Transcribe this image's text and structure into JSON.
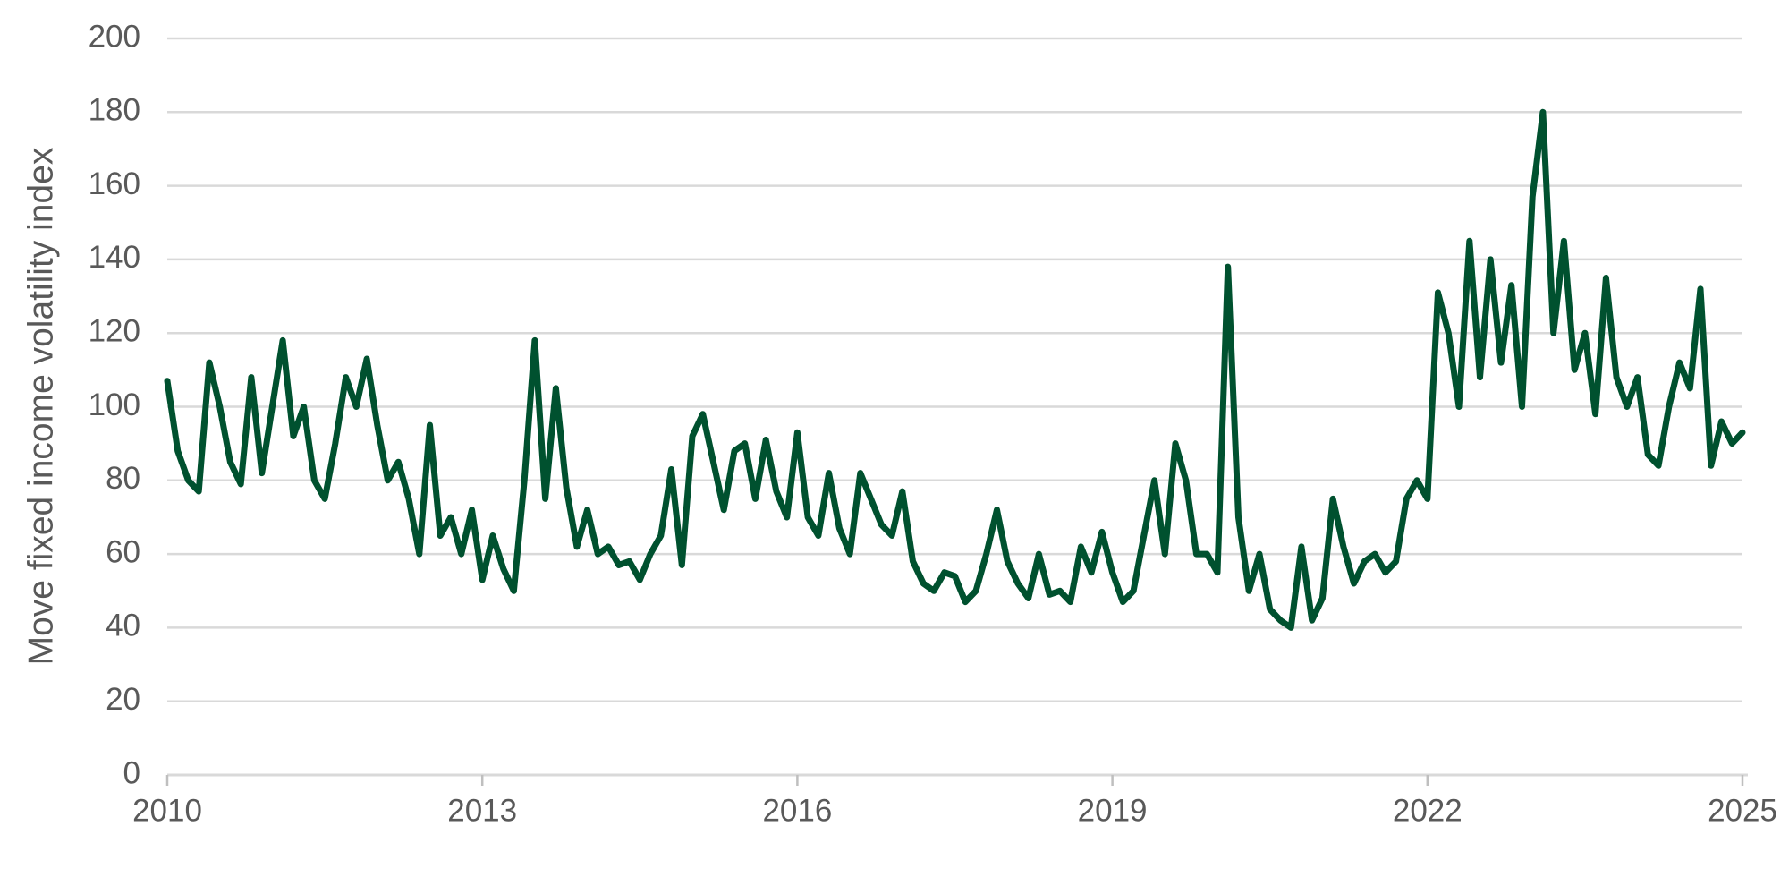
{
  "chart_data": {
    "type": "line",
    "ylabel": "Move fixed income volatility index",
    "color": "#00512f",
    "grid": true,
    "xlim": [
      2010,
      2025
    ],
    "xticks": [
      2010,
      2013,
      2016,
      2019,
      2022,
      2025
    ],
    "ylim": [
      0,
      200
    ],
    "yticks": [
      0,
      20,
      40,
      60,
      80,
      100,
      120,
      140,
      160,
      180,
      200
    ],
    "x": [
      2010.0,
      2010.1,
      2010.2,
      2010.3,
      2010.4,
      2010.5,
      2010.6,
      2010.7,
      2010.8,
      2010.9,
      2011.0,
      2011.1,
      2011.2,
      2011.3,
      2011.4,
      2011.5,
      2011.6,
      2011.7,
      2011.8,
      2011.9,
      2012.0,
      2012.1,
      2012.2,
      2012.3,
      2012.4,
      2012.5,
      2012.6,
      2012.7,
      2012.8,
      2012.9,
      2013.0,
      2013.1,
      2013.2,
      2013.3,
      2013.4,
      2013.5,
      2013.6,
      2013.7,
      2013.8,
      2013.9,
      2014.0,
      2014.1,
      2014.2,
      2014.3,
      2014.4,
      2014.5,
      2014.6,
      2014.7,
      2014.8,
      2014.9,
      2015.0,
      2015.1,
      2015.2,
      2015.3,
      2015.4,
      2015.5,
      2015.6,
      2015.7,
      2015.8,
      2015.9,
      2016.0,
      2016.1,
      2016.2,
      2016.3,
      2016.4,
      2016.5,
      2016.6,
      2016.7,
      2016.8,
      2016.9,
      2017.0,
      2017.1,
      2017.2,
      2017.3,
      2017.4,
      2017.5,
      2017.6,
      2017.7,
      2017.8,
      2017.9,
      2018.0,
      2018.1,
      2018.2,
      2018.3,
      2018.4,
      2018.5,
      2018.6,
      2018.7,
      2018.8,
      2018.9,
      2019.0,
      2019.1,
      2019.2,
      2019.3,
      2019.4,
      2019.5,
      2019.6,
      2019.7,
      2019.8,
      2019.9,
      2020.0,
      2020.1,
      2020.2,
      2020.3,
      2020.4,
      2020.5,
      2020.6,
      2020.7,
      2020.8,
      2020.9,
      2021.0,
      2021.1,
      2021.2,
      2021.3,
      2021.4,
      2021.5,
      2021.6,
      2021.7,
      2021.8,
      2021.9,
      2022.0,
      2022.1,
      2022.2,
      2022.3,
      2022.4,
      2022.5,
      2022.6,
      2022.7,
      2022.8,
      2022.9,
      2023.0,
      2023.1,
      2023.2,
      2023.3,
      2023.4,
      2023.5,
      2023.6,
      2023.7,
      2023.8,
      2023.9,
      2024.0,
      2024.1,
      2024.2,
      2024.3,
      2024.4,
      2024.5,
      2024.6,
      2024.7,
      2024.8,
      2024.9,
      2025.0
    ],
    "values": [
      107,
      88,
      80,
      77,
      112,
      100,
      85,
      79,
      108,
      82,
      100,
      118,
      92,
      100,
      80,
      75,
      90,
      108,
      100,
      113,
      95,
      80,
      85,
      75,
      60,
      95,
      65,
      70,
      60,
      72,
      53,
      65,
      56,
      50,
      80,
      118,
      75,
      105,
      78,
      62,
      72,
      60,
      62,
      57,
      58,
      53,
      60,
      65,
      83,
      57,
      92,
      98,
      85,
      72,
      88,
      90,
      75,
      91,
      77,
      70,
      93,
      70,
      65,
      82,
      67,
      60,
      82,
      75,
      68,
      65,
      77,
      58,
      52,
      50,
      55,
      54,
      47,
      50,
      60,
      72,
      58,
      52,
      48,
      60,
      49,
      50,
      47,
      62,
      55,
      66,
      55,
      47,
      50,
      65,
      80,
      60,
      90,
      80,
      60,
      60,
      55,
      138,
      70,
      50,
      60,
      45,
      42,
      40,
      62,
      42,
      48,
      75,
      62,
      52,
      58,
      60,
      55,
      58,
      75,
      80,
      75,
      131,
      120,
      100,
      145,
      108,
      140,
      112,
      133,
      100,
      157,
      180,
      120,
      145,
      110,
      120,
      98,
      135,
      108,
      100,
      108,
      87,
      84,
      100,
      112,
      105,
      132,
      84,
      96,
      90,
      93
    ]
  }
}
